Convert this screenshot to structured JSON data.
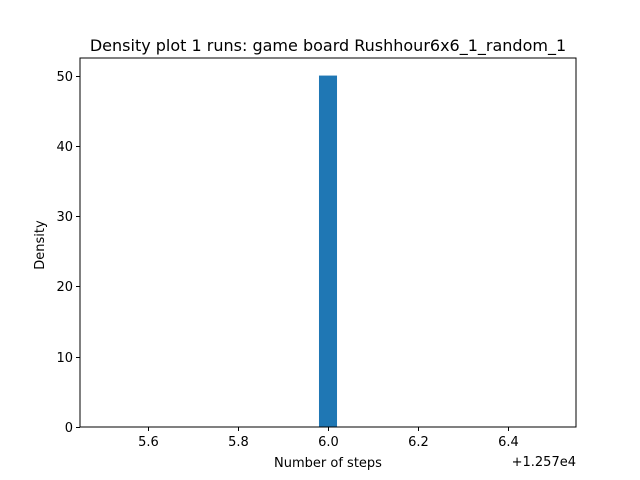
{
  "chart_data": {
    "type": "bar",
    "title": "Density plot 1 runs: game board Rushhour6x6_1_random_1",
    "xlabel": "Number of steps",
    "ylabel": "Density",
    "x_offset_label": "+1.257e4",
    "xlim": [
      5.45,
      6.55
    ],
    "ylim": [
      0,
      52.5
    ],
    "xticks": [
      5.6,
      5.8,
      6.0,
      6.2,
      6.4
    ],
    "xtick_labels": [
      "5.6",
      "5.8",
      "6.0",
      "6.2",
      "6.4"
    ],
    "yticks": [
      0,
      10,
      20,
      30,
      40,
      50
    ],
    "ytick_labels": [
      "0",
      "10",
      "20",
      "30",
      "40",
      "50"
    ],
    "bars": [
      {
        "x0": 5.98,
        "x1": 6.02,
        "value": 50
      }
    ],
    "bar_color": "#1f77b4",
    "grid": false,
    "legend": "none"
  }
}
